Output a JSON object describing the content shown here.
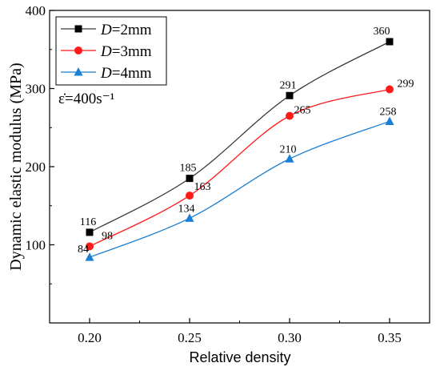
{
  "chart_data": {
    "type": "line",
    "xlabel": "Relative density",
    "ylabel": "Dynamic elastic modulus (MPa)",
    "xlim": [
      0.18,
      0.37
    ],
    "ylim": [
      0,
      400
    ],
    "x": [
      0.2,
      0.25,
      0.3,
      0.35
    ],
    "x_tick_labels": [
      "0.20",
      "0.25",
      "0.30",
      "0.35"
    ],
    "y_ticks": [
      100,
      200,
      300,
      400
    ],
    "y_tick_labels": [
      "100",
      "200",
      "300",
      "400"
    ],
    "grid": false,
    "legend": {
      "placement": "top-left",
      "annotation": "ε̇=400s⁻¹"
    },
    "series": [
      {
        "name_var": "D",
        "name_rest": "=2mm",
        "marker": "square",
        "color": "#000000",
        "line_color": "#3a3a3a",
        "values": [
          116,
          185,
          291,
          360
        ],
        "labels": [
          "116",
          "185",
          "291",
          "360"
        ]
      },
      {
        "name_var": "D",
        "name_rest": "=3mm",
        "marker": "circle",
        "color": "#ff1a1a",
        "line_color": "#ff1a1a",
        "values": [
          98,
          163,
          265,
          299
        ],
        "labels": [
          "98",
          "163",
          "265",
          "299"
        ]
      },
      {
        "name_var": "D",
        "name_rest": "=4mm",
        "marker": "triangle",
        "color": "#1a7fd4",
        "line_color": "#1a7fd4",
        "values": [
          84,
          134,
          210,
          258
        ],
        "labels": [
          "84",
          "134",
          "210",
          "258"
        ]
      }
    ]
  }
}
